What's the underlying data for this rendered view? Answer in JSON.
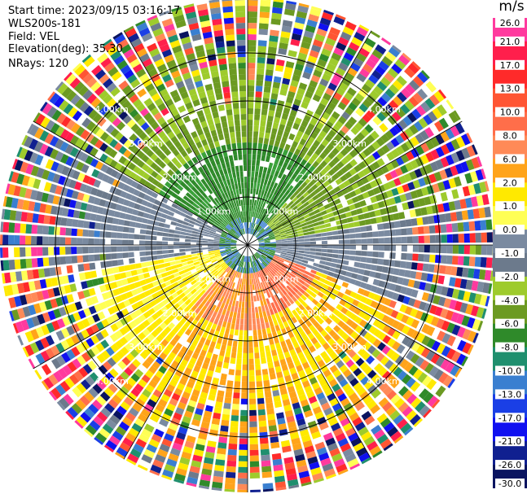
{
  "header": {
    "start_time": "Start time: 2023/09/15 03:16:17",
    "instrument": "WLS200s-181",
    "field": "Field: VEL",
    "elevation": "Elevation(deg): 35.30",
    "nrays": "NRays: 120"
  },
  "colorbar": {
    "title": "m/s",
    "tick_labels": [
      "26.0",
      "21.0",
      "17.0",
      "13.0",
      "10.0",
      "8.0",
      "6.0",
      "2.0",
      "1.0",
      "0.0",
      "-1.0",
      "-2.0",
      "-4.0",
      "-6.0",
      "-8.0",
      "-10.0",
      "-13.0",
      "-17.0",
      "-21.0",
      "-26.0",
      "-30.0"
    ],
    "colors": [
      "#ff3a9e",
      "#ff1f4c",
      "#ff2a2a",
      "#ff5533",
      "#ff6e4a",
      "#ff8a57",
      "#ffa41a",
      "#ffe900",
      "#ffff55",
      "#7a8aa0",
      "#6c7a8c",
      "#9ecb2c",
      "#6c9a22",
      "#2f8a2a",
      "#1f8f6e",
      "#3a7fd0",
      "#1a3fe6",
      "#1010f0",
      "#102090",
      "#0a1460"
    ]
  },
  "chart_data": {
    "type": "polar ppi",
    "field": "VEL",
    "units": "m/s",
    "nrays": 120,
    "elevation_deg": 35.3,
    "range_rings_km": [
      1.0,
      2.0,
      3.0,
      4.0
    ],
    "ring_labels": [
      "1.00km",
      "2.00km",
      "3.00km",
      "4.00km"
    ],
    "value_range": [
      -30.0,
      26.0
    ],
    "grid": true
  }
}
